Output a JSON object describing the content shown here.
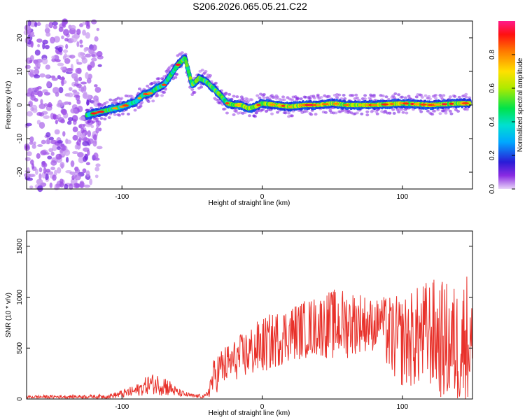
{
  "title": "S206.2026.065.05.21.C22",
  "chart_data": [
    {
      "type": "heatmap",
      "xlabel": "Height of straight line (km)",
      "ylabel": "Frequency (Hz)",
      "xlim": [
        -168,
        150
      ],
      "ylim": [
        -25,
        25
      ],
      "xticks": [
        -100,
        0,
        100
      ],
      "yticks": [
        -20,
        -10,
        0,
        10,
        20
      ],
      "colorbar": {
        "label": "Normalized spectral amplitude",
        "range": [
          0,
          1
        ],
        "ticks": [
          0.0,
          0.2,
          0.4,
          0.6,
          0.8
        ],
        "tick_labels": [
          "0.0",
          "0.2",
          "0.4",
          "0.6",
          "0.8"
        ]
      },
      "ridge": {
        "description_points_x": [
          -125,
          -110,
          -100,
          -90,
          -85,
          -80,
          -75,
          -70,
          -65,
          -60,
          -55,
          -50,
          -45,
          -40,
          -35,
          -30,
          -25,
          -20,
          -15,
          -10,
          -5,
          0,
          10,
          20,
          30,
          40,
          50,
          60,
          80,
          100,
          120,
          140,
          148
        ],
        "description_points_y": [
          -3,
          -1.5,
          -0.5,
          1,
          3,
          3.5,
          5,
          6,
          9,
          12,
          14,
          6,
          8,
          7,
          5,
          3,
          0.5,
          0,
          0,
          -1,
          -0.5,
          0.5,
          0,
          -0.5,
          0,
          0,
          0.5,
          0,
          0,
          0.5,
          0,
          0.5,
          0.5
        ]
      },
      "noise_region_x": [
        -168,
        -115
      ]
    },
    {
      "type": "line",
      "xlabel": "Height of straight line (km)",
      "ylabel": "SNR (10 * v/v)",
      "xlim": [
        -168,
        150
      ],
      "ylim": [
        0,
        1650
      ],
      "xticks": [
        -100,
        0,
        100
      ],
      "yticks": [
        0,
        500,
        1000,
        1500
      ],
      "color": "#e8312a",
      "envelope_x": [
        -168,
        -110,
        -100,
        -90,
        -80,
        -70,
        -60,
        -50,
        -40,
        -35,
        -30,
        -20,
        -10,
        0,
        20,
        40,
        50,
        60,
        70,
        80,
        85,
        90,
        100,
        110,
        120,
        130,
        140,
        147,
        150
      ],
      "envelope_mean": [
        20,
        25,
        50,
        80,
        150,
        140,
        60,
        30,
        25,
        200,
        300,
        380,
        450,
        520,
        650,
        720,
        730,
        740,
        760,
        720,
        800,
        620,
        560,
        600,
        650,
        560,
        520,
        600,
        500
      ],
      "envelope_spread": [
        15,
        20,
        40,
        60,
        100,
        110,
        40,
        20,
        20,
        180,
        200,
        200,
        250,
        280,
        280,
        300,
        350,
        350,
        300,
        250,
        200,
        400,
        450,
        500,
        550,
        600,
        600,
        700,
        400
      ]
    }
  ]
}
